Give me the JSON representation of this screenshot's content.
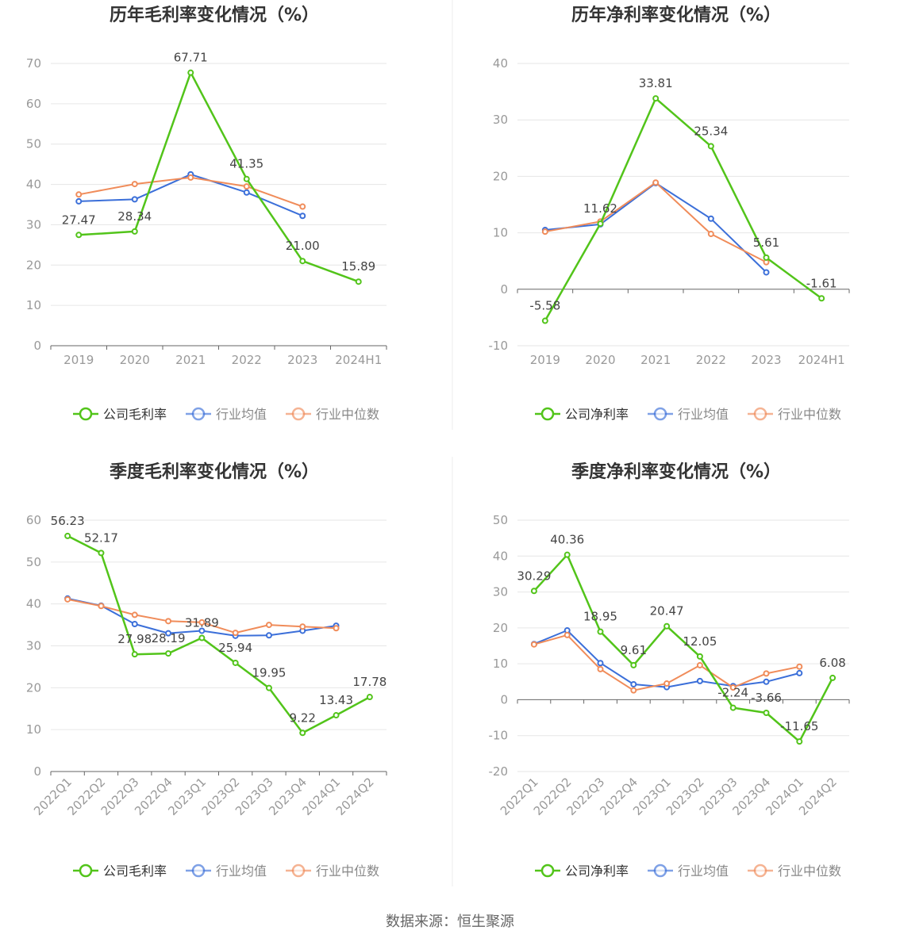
{
  "colors": {
    "company": "#52c41a",
    "avg": "#3b6fd9",
    "median": "#f08c5a",
    "grid": "#e6e6e6",
    "axis": "#666666",
    "tick": "#999999",
    "title": "#333333"
  },
  "legend": {
    "avg": "行业均值",
    "median": "行业中位数"
  },
  "source": "数据来源：恒生聚源",
  "chart_data": [
    {
      "type": "line",
      "title": "历年毛利率变化情况（%）",
      "categories": [
        "2019",
        "2020",
        "2021",
        "2022",
        "2023",
        "2024H1"
      ],
      "ylim": [
        0,
        70
      ],
      "yticks": [
        0,
        10,
        20,
        30,
        40,
        50,
        60,
        70
      ],
      "tick_rotate": false,
      "series": [
        {
          "name": "公司毛利率",
          "role": "company",
          "values": [
            27.47,
            28.34,
            67.71,
            41.35,
            21.0,
            15.89
          ],
          "labels": [
            "27.47",
            "28.34",
            "67.71",
            "41.35",
            "21.00",
            "15.89"
          ]
        },
        {
          "name": "行业均值",
          "role": "avg",
          "values": [
            35.8,
            36.3,
            42.5,
            38.0,
            32.2,
            null
          ]
        },
        {
          "name": "行业中位数",
          "role": "median",
          "values": [
            37.5,
            40.1,
            41.7,
            39.5,
            34.5,
            null
          ]
        }
      ]
    },
    {
      "type": "line",
      "title": "历年净利率变化情况（%）",
      "categories": [
        "2019",
        "2020",
        "2021",
        "2022",
        "2023",
        "2024H1"
      ],
      "ylim": [
        -10,
        40
      ],
      "yticks": [
        -10,
        0,
        10,
        20,
        30,
        40
      ],
      "tick_rotate": false,
      "series": [
        {
          "name": "公司净利率",
          "role": "company",
          "values": [
            -5.58,
            11.62,
            33.81,
            25.34,
            5.61,
            -1.61
          ],
          "labels": [
            "-5.58",
            "11.62",
            "33.81",
            "25.34",
            "5.61",
            "-1.61"
          ]
        },
        {
          "name": "行业均值",
          "role": "avg",
          "values": [
            10.5,
            11.5,
            18.8,
            12.5,
            3.0,
            null
          ]
        },
        {
          "name": "行业中位数",
          "role": "median",
          "values": [
            10.2,
            12.0,
            18.9,
            9.8,
            4.8,
            null
          ]
        }
      ]
    },
    {
      "type": "line",
      "title": "季度毛利率变化情况（%）",
      "categories": [
        "2022Q1",
        "2022Q2",
        "2022Q3",
        "2022Q4",
        "2023Q1",
        "2023Q2",
        "2023Q3",
        "2023Q4",
        "2024Q1",
        "2024Q2"
      ],
      "ylim": [
        0,
        60
      ],
      "yticks": [
        0,
        10,
        20,
        30,
        40,
        50,
        60
      ],
      "tick_rotate": true,
      "series": [
        {
          "name": "公司毛利率",
          "role": "company",
          "values": [
            56.23,
            52.17,
            27.98,
            28.19,
            31.89,
            25.94,
            19.95,
            9.22,
            13.43,
            17.78
          ],
          "labels": [
            "56.23",
            "52.17",
            "27.98",
            "28.19",
            "31.89",
            "25.94",
            "19.95",
            "9.22",
            "13.43",
            "17.78"
          ]
        },
        {
          "name": "行业均值",
          "role": "avg",
          "values": [
            41.3,
            39.6,
            35.2,
            33.0,
            33.6,
            32.4,
            32.5,
            33.6,
            34.8,
            null
          ]
        },
        {
          "name": "行业中位数",
          "role": "median",
          "values": [
            41.1,
            39.5,
            37.4,
            35.9,
            35.6,
            33.1,
            35.0,
            34.6,
            34.2,
            null
          ]
        }
      ]
    },
    {
      "type": "line",
      "title": "季度净利率变化情况（%）",
      "categories": [
        "2022Q1",
        "2022Q2",
        "2022Q3",
        "2022Q4",
        "2023Q1",
        "2023Q2",
        "2023Q3",
        "2023Q4",
        "2024Q1",
        "2024Q2"
      ],
      "ylim": [
        -20,
        50
      ],
      "yticks": [
        -20,
        -10,
        0,
        10,
        20,
        30,
        40,
        50
      ],
      "tick_rotate": true,
      "series": [
        {
          "name": "公司净利率",
          "role": "company",
          "values": [
            30.29,
            40.36,
            18.95,
            9.61,
            20.47,
            12.05,
            -2.24,
            -3.66,
            -11.65,
            6.08
          ],
          "labels": [
            "30.29",
            "40.36",
            "18.95",
            "9.61",
            "20.47",
            "12.05",
            "-2.24",
            "-3.66",
            "-11.65",
            "6.08"
          ]
        },
        {
          "name": "行业均值",
          "role": "avg",
          "values": [
            15.5,
            19.3,
            10.2,
            4.3,
            3.5,
            5.2,
            3.8,
            5.0,
            7.4,
            null
          ]
        },
        {
          "name": "行业中位数",
          "role": "median",
          "values": [
            15.4,
            18.0,
            8.5,
            2.6,
            4.5,
            9.6,
            3.4,
            7.3,
            9.2,
            null
          ]
        }
      ]
    }
  ]
}
